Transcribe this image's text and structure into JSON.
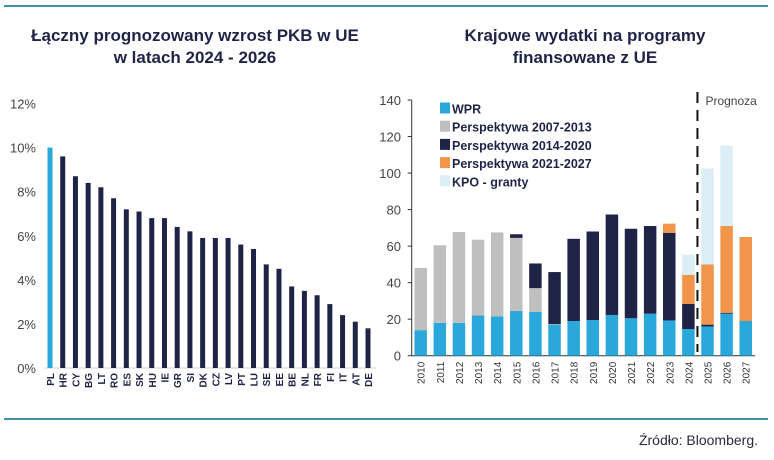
{
  "colors": {
    "rule": "#3f8fa8",
    "title": "#1f2447",
    "pl": "#2aa8dc",
    "bar": "#1f2447"
  },
  "source": "Źródło: Bloomberg.",
  "chart_data": [
    {
      "type": "bar",
      "title_line1": "Łączny prognozowany wzrost PKB w UE",
      "title_line2": "w latach 2024 - 2026",
      "ylim": [
        0,
        12
      ],
      "yticks": [
        "0%",
        "2%",
        "4%",
        "6%",
        "8%",
        "10%",
        "12%"
      ],
      "categories": [
        "PL",
        "HR",
        "CY",
        "BG",
        "LT",
        "RO",
        "ES",
        "SK",
        "HU",
        "IE",
        "GR",
        "SI",
        "DK",
        "CZ",
        "LV",
        "PT",
        "LU",
        "SE",
        "EE",
        "BE",
        "NL",
        "FR",
        "FI",
        "IT",
        "AT",
        "DE"
      ],
      "values": [
        10.0,
        9.6,
        8.7,
        8.4,
        8.2,
        7.7,
        7.2,
        7.1,
        6.8,
        6.8,
        6.4,
        6.2,
        5.9,
        5.9,
        5.9,
        5.6,
        5.4,
        4.7,
        4.5,
        3.7,
        3.5,
        3.3,
        2.9,
        2.4,
        2.1,
        1.8
      ],
      "highlight": "PL",
      "grid": false
    },
    {
      "type": "stacked-bar",
      "title_line1": "Krajowe wydatki na programy",
      "title_line2": "finansowane z UE",
      "ylim": [
        0,
        140
      ],
      "yticks": [
        "0",
        "20",
        "40",
        "60",
        "80",
        "100",
        "120",
        "140"
      ],
      "categories": [
        "2010",
        "2011",
        "2012",
        "2013",
        "2014",
        "2015",
        "2016",
        "2017",
        "2018",
        "2019",
        "2020",
        "2021",
        "2022",
        "2023",
        "2024",
        "2025",
        "2026",
        "2027"
      ],
      "forecast_label": "Prognoza",
      "forecast_from": "2025",
      "legend_position": "top-left",
      "grid": false,
      "series": [
        {
          "name": "WPR",
          "color": "#2aa8dc",
          "values": [
            14,
            18,
            18,
            22,
            21.5,
            24.5,
            24,
            17,
            19,
            19.5,
            22.3,
            20.5,
            23,
            19.3,
            14.6,
            16,
            23,
            19
          ]
        },
        {
          "name": "Perspektywa 2007-2013",
          "color": "#bfbfbf",
          "values": [
            34,
            42.5,
            49.7,
            41.5,
            46,
            40,
            13,
            0.3,
            0,
            0,
            0,
            0,
            0,
            0,
            0,
            0,
            0,
            0
          ]
        },
        {
          "name": "Perspektywa 2014-2020",
          "color": "#1f2447",
          "values": [
            0,
            0,
            0,
            0,
            0,
            2,
            13.5,
            28.5,
            45,
            48.5,
            55,
            49,
            48,
            48,
            13.7,
            1,
            0.5,
            0
          ]
        },
        {
          "name": "Perspektywa 2021-2027",
          "color": "#f0954a",
          "values": [
            0,
            0,
            0,
            0,
            0,
            0,
            0,
            0,
            0,
            0,
            0,
            0,
            0,
            5,
            16,
            33,
            47.5,
            46
          ]
        },
        {
          "name": "KPO - granty",
          "color": "#dbeef6",
          "values": [
            0,
            0,
            0,
            0,
            0,
            0,
            0,
            0,
            0,
            0,
            0,
            0,
            0,
            0,
            11,
            52.5,
            44,
            0
          ]
        }
      ]
    }
  ]
}
